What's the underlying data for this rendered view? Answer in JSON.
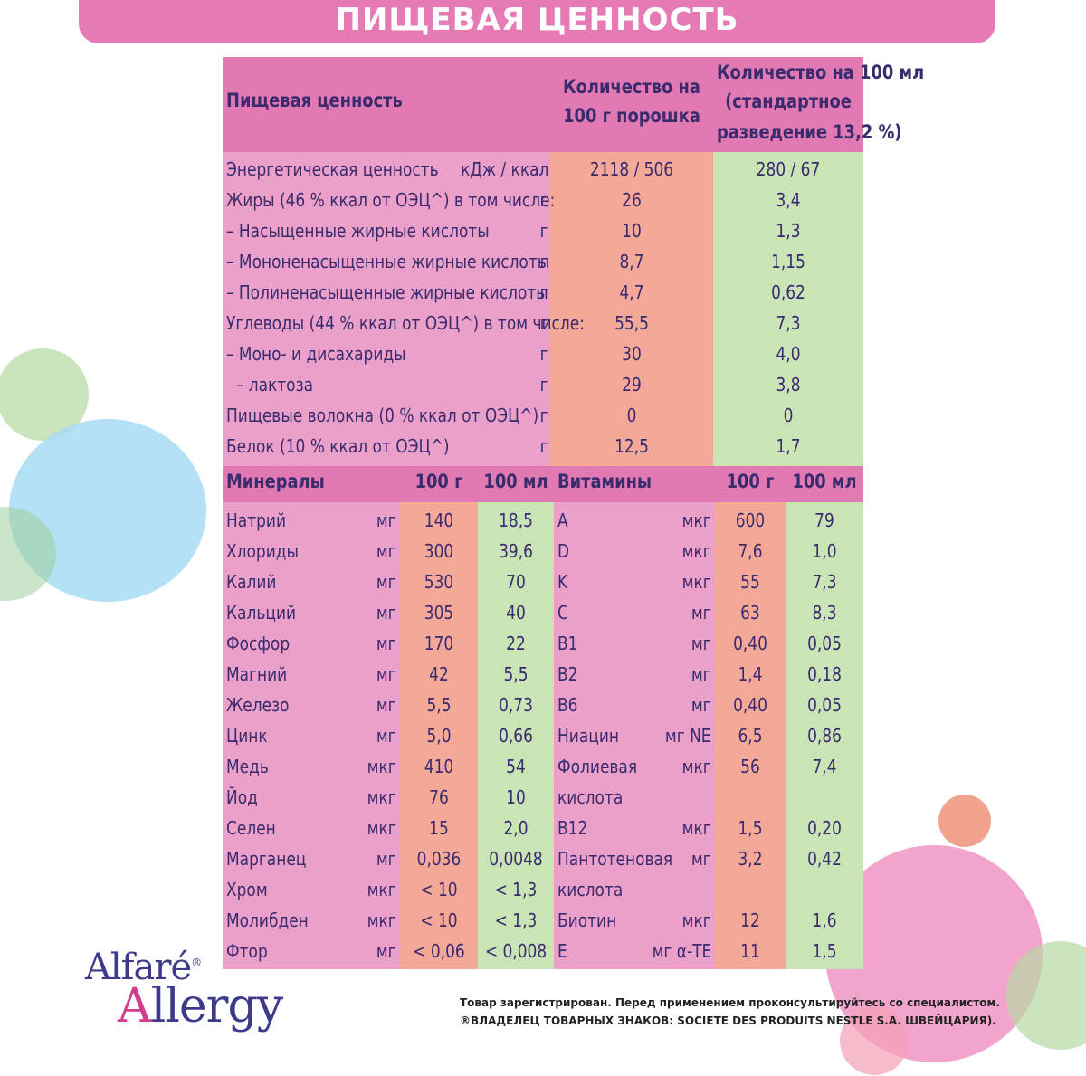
{
  "page_title": "ПИЩЕВАЯ ЦЕННОСТЬ",
  "header": {
    "label": "Пищевая ценность",
    "per100g": [
      "Количество на",
      "100 г порошка"
    ],
    "per100ml": [
      "Количество на 100 мл",
      "(стандартное",
      "разведение 13,2 %)"
    ]
  },
  "nutrition_rows": [
    {
      "name": "Энергетическая ценность",
      "unit": "кДж / ккал",
      "per100g": "2118 / 506",
      "per100ml": "280 / 67"
    },
    {
      "name": "Жиры (46 % ккал от ОЭЦ^) в том числе:",
      "unit": "г",
      "per100g": "26",
      "per100ml": "3,4"
    },
    {
      "name": "– Насыщенные жирные кислоты",
      "unit": "г",
      "per100g": "10",
      "per100ml": "1,3"
    },
    {
      "name": "– Мононенасыщенные жирные кислоты",
      "unit": "г",
      "per100g": "8,7",
      "per100ml": "1,15"
    },
    {
      "name": "– Полиненасыщенные жирные кислоты",
      "unit": "г",
      "per100g": "4,7",
      "per100ml": "0,62"
    },
    {
      "name": "Углеводы (44 % ккал от ОЭЦ^) в том числе:",
      "unit": "г",
      "per100g": "55,5",
      "per100ml": "7,3"
    },
    {
      "name": "– Моно- и дисахариды",
      "unit": "г",
      "per100g": "30",
      "per100ml": "4,0"
    },
    {
      "name": "  – лактоза",
      "unit": "г",
      "per100g": "29",
      "per100ml": "3,8"
    },
    {
      "name": "Пищевые волокна (0 % ккал от ОЭЦ^)",
      "unit": "г",
      "per100g": "0",
      "per100ml": "0"
    },
    {
      "name": "Белок (10 % ккал от ОЭЦ^)",
      "unit": "г",
      "per100g": "12,5",
      "per100ml": "1,7"
    }
  ],
  "minerals_header": {
    "label": "Минералы",
    "c100g": "100 г",
    "c100ml": "100 мл"
  },
  "minerals": [
    {
      "name": "Натрий",
      "unit": "мг",
      "per100g": "140",
      "per100ml": "18,5"
    },
    {
      "name": "Хлориды",
      "unit": "мг",
      "per100g": "300",
      "per100ml": "39,6"
    },
    {
      "name": "Калий",
      "unit": "мг",
      "per100g": "530",
      "per100ml": "70"
    },
    {
      "name": "Кальций",
      "unit": "мг",
      "per100g": "305",
      "per100ml": "40"
    },
    {
      "name": "Фосфор",
      "unit": "мг",
      "per100g": "170",
      "per100ml": "22"
    },
    {
      "name": "Магний",
      "unit": "мг",
      "per100g": "42",
      "per100ml": "5,5"
    },
    {
      "name": "Железо",
      "unit": "мг",
      "per100g": "5,5",
      "per100ml": "0,73"
    },
    {
      "name": "Цинк",
      "unit": "мг",
      "per100g": "5,0",
      "per100ml": "0,66"
    },
    {
      "name": "Медь",
      "unit": "мкг",
      "per100g": "410",
      "per100ml": "54"
    },
    {
      "name": "Йод",
      "unit": "мкг",
      "per100g": "76",
      "per100ml": "10"
    },
    {
      "name": "Селен",
      "unit": "мкг",
      "per100g": "15",
      "per100ml": "2,0"
    },
    {
      "name": "Марганец",
      "unit": "мг",
      "per100g": "0,036",
      "per100ml": "0,0048"
    },
    {
      "name": "Хром",
      "unit": "мкг",
      "per100g": "< 10",
      "per100ml": "< 1,3"
    },
    {
      "name": "Молибден",
      "unit": "мкг",
      "per100g": "< 10",
      "per100ml": "< 1,3"
    },
    {
      "name": "Фтор",
      "unit": "мг",
      "per100g": "< 0,06",
      "per100ml": "< 0,008"
    }
  ],
  "vitamins_header": {
    "label": "Витамины",
    "c100g": "100 г",
    "c100ml": "100 мл"
  },
  "vitamins": [
    {
      "name": "A",
      "unit": "мкг",
      "per100g": "600",
      "per100ml": "79"
    },
    {
      "name": "D",
      "unit": "мкг",
      "per100g": "7,6",
      "per100ml": "1,0"
    },
    {
      "name": "K",
      "unit": "мкг",
      "per100g": "55",
      "per100ml": "7,3"
    },
    {
      "name": "C",
      "unit": "мг",
      "per100g": "63",
      "per100ml": "8,3"
    },
    {
      "name": "B1",
      "unit": "мг",
      "per100g": "0,40",
      "per100ml": "0,05"
    },
    {
      "name": "B2",
      "unit": "мг",
      "per100g": "1,4",
      "per100ml": "0,18"
    },
    {
      "name": "B6",
      "unit": "мг",
      "per100g": "0,40",
      "per100ml": "0,05"
    },
    {
      "name": "Ниацин",
      "unit": "мг NE",
      "per100g": "6,5",
      "per100ml": "0,86"
    },
    {
      "name": "Фолиевая",
      "unit": "мкг",
      "per100g": "56",
      "per100ml": "7,4"
    },
    {
      "name": "кислота",
      "unit": "",
      "per100g": "",
      "per100ml": ""
    },
    {
      "name": "B12",
      "unit": "мкг",
      "per100g": "1,5",
      "per100ml": "0,20"
    },
    {
      "name": "Пантотеновая",
      "unit": "мг",
      "per100g": "3,2",
      "per100ml": "0,42"
    },
    {
      "name": "кислота",
      "unit": "",
      "per100g": "",
      "per100ml": ""
    },
    {
      "name": "Биотин",
      "unit": "мкг",
      "per100g": "12",
      "per100ml": "1,6"
    },
    {
      "name": "E",
      "unit": "мг α-TE",
      "per100g": "11",
      "per100ml": "1,5"
    }
  ],
  "brand": {
    "line1": "Alfaré",
    "reg": "®",
    "line2_a": "A",
    "line2_rest": "llergy"
  },
  "footer": {
    "line1": "Товар зарегистрирован. Перед применением проконсультируйтесь со специалистом.",
    "line2": "®ВЛАДЕЛЕЦ ТОВАРНЫХ ЗНАКОВ:  SOCIETE DES PRODUITS NESTLE S.A.  ШВЕЙЦАРИЯ)."
  },
  "colors": {
    "banner": "#e57ab4",
    "header_row": "#e17ab3",
    "label_col": "#eaa0c8",
    "col_100g": "#f4a897",
    "col_100ml": "#c9e4b5",
    "text": "#3a2a6e"
  }
}
